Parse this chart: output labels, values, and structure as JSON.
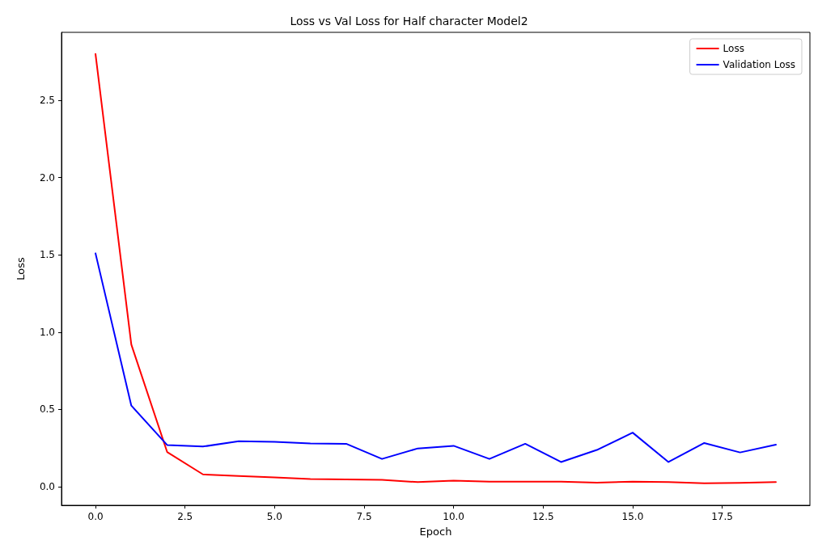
{
  "chart_data": {
    "type": "line",
    "title": "Loss vs Val Loss for Half character Model2",
    "xlabel": "Epoch",
    "ylabel": "Loss",
    "x": [
      0,
      1,
      2,
      3,
      4,
      5,
      6,
      7,
      8,
      9,
      10,
      11,
      12,
      13,
      14,
      15,
      16,
      17,
      18,
      19
    ],
    "series": [
      {
        "name": "Loss",
        "color": "#ff0000",
        "values": [
          2.8,
          0.92,
          0.225,
          0.08,
          0.07,
          0.06,
          0.05,
          0.048,
          0.045,
          0.03,
          0.04,
          0.033,
          0.033,
          0.033,
          0.027,
          0.033,
          0.03,
          0.022,
          0.025,
          0.03
        ]
      },
      {
        "name": "Validation Loss",
        "color": "#0000ff",
        "values": [
          1.51,
          0.525,
          0.27,
          0.26,
          0.295,
          0.29,
          0.28,
          0.278,
          0.18,
          0.248,
          0.265,
          0.18,
          0.278,
          0.16,
          0.238,
          0.35,
          0.16,
          0.283,
          0.222,
          0.272
        ]
      }
    ],
    "xlim": [
      -0.95,
      19.95
    ],
    "xticks": [
      {
        "value": 0,
        "label": "0.0"
      },
      {
        "value": 2.5,
        "label": "2.5"
      },
      {
        "value": 5,
        "label": "5.0"
      },
      {
        "value": 7.5,
        "label": "7.5"
      },
      {
        "value": 10,
        "label": "10.0"
      },
      {
        "value": 12.5,
        "label": "12.5"
      },
      {
        "value": 15,
        "label": "15.0"
      },
      {
        "value": 17.5,
        "label": "17.5"
      }
    ],
    "ylim": [
      -0.12,
      2.94
    ],
    "yticks": [
      {
        "value": 0,
        "label": "0.0"
      },
      {
        "value": 0.5,
        "label": "0.5"
      },
      {
        "value": 1,
        "label": "1.0"
      },
      {
        "value": 1.5,
        "label": "1.5"
      },
      {
        "value": 2,
        "label": "2.0"
      },
      {
        "value": 2.5,
        "label": "2.5"
      }
    ],
    "grid": false,
    "legend": "top right",
    "marker": "none",
    "line_style": "solid"
  }
}
